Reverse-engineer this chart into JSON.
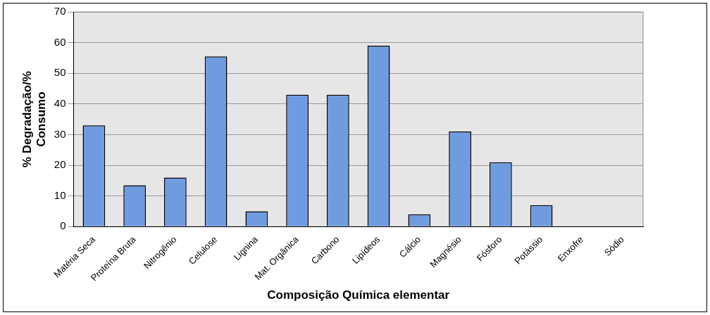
{
  "chart_data": {
    "type": "bar",
    "xlabel": "Composição Química elementar",
    "ylabel": "% Degradação/%\nConsumo",
    "categories": [
      "Matéria Seca",
      "Proteína Bruta",
      "Nitrogênio",
      "Celulose",
      "Lignina",
      "Mat. Orgânica",
      "Carbono",
      "Lipídeos",
      "Cálcio",
      "Magnésio",
      "Fósforo",
      "Potássio",
      "Enxofre",
      "Sódio"
    ],
    "values": [
      33,
      13.5,
      16,
      55.5,
      5,
      43,
      43,
      59,
      4,
      31,
      21,
      7,
      0,
      0
    ],
    "color": "#6f9ce0",
    "ylim": [
      0,
      70
    ],
    "yticks": [
      0,
      10,
      20,
      30,
      40,
      50,
      60,
      70
    ],
    "grid": "y",
    "legend": false
  }
}
